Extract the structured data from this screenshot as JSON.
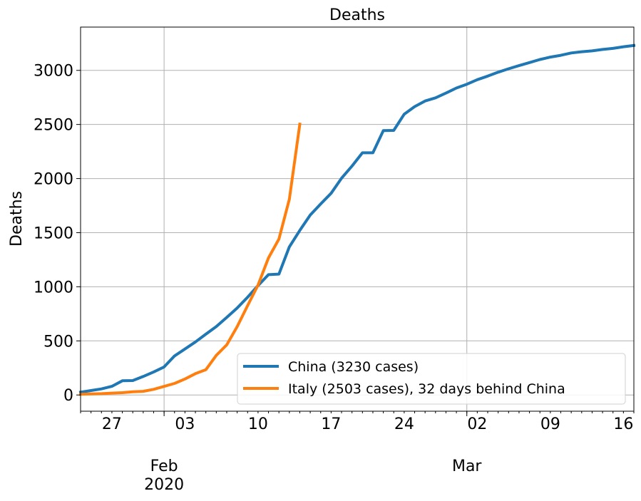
{
  "chart_data": {
    "type": "line",
    "title": "Deaths",
    "xlabel": "",
    "ylabel": "Deaths",
    "x_start": "2020-01-24",
    "x_end": "2020-03-17",
    "ylim": [
      -150,
      3400
    ],
    "yticks": [
      0,
      500,
      1000,
      1500,
      2000,
      2500,
      3000
    ],
    "xtick_labels": [
      {
        "date": "2020-01-27",
        "label": "27"
      },
      {
        "date": "2020-02-03",
        "label": "03"
      },
      {
        "date": "2020-02-10",
        "label": "10"
      },
      {
        "date": "2020-02-17",
        "label": "17"
      },
      {
        "date": "2020-02-24",
        "label": "24"
      },
      {
        "date": "2020-03-02",
        "label": "02"
      },
      {
        "date": "2020-03-09",
        "label": "09"
      },
      {
        "date": "2020-03-16",
        "label": "16"
      }
    ],
    "month_labels": [
      {
        "date": "2020-02-01",
        "label": "Feb",
        "year": "2020"
      },
      {
        "date": "2020-03-01",
        "label": "Mar",
        "year": ""
      }
    ],
    "grid": true,
    "legend_position": "lower-right",
    "series": [
      {
        "name": "China (3230 cases)",
        "color": "#1f77b4",
        "x": [
          "2020-01-24",
          "2020-01-25",
          "2020-01-26",
          "2020-01-27",
          "2020-01-28",
          "2020-01-29",
          "2020-01-30",
          "2020-01-31",
          "2020-02-01",
          "2020-02-02",
          "2020-02-03",
          "2020-02-04",
          "2020-02-05",
          "2020-02-06",
          "2020-02-07",
          "2020-02-08",
          "2020-02-09",
          "2020-02-10",
          "2020-02-11",
          "2020-02-12",
          "2020-02-13",
          "2020-02-14",
          "2020-02-15",
          "2020-02-16",
          "2020-02-17",
          "2020-02-18",
          "2020-02-19",
          "2020-02-20",
          "2020-02-21",
          "2020-02-22",
          "2020-02-23",
          "2020-02-24",
          "2020-02-25",
          "2020-02-26",
          "2020-02-27",
          "2020-02-28",
          "2020-02-29",
          "2020-03-01",
          "2020-03-02",
          "2020-03-03",
          "2020-03-04",
          "2020-03-05",
          "2020-03-06",
          "2020-03-07",
          "2020-03-08",
          "2020-03-09",
          "2020-03-10",
          "2020-03-11",
          "2020-03-12",
          "2020-03-13",
          "2020-03-14",
          "2020-03-15",
          "2020-03-16",
          "2020-03-17"
        ],
        "values": [
          26,
          41,
          56,
          80,
          131,
          133,
          171,
          213,
          259,
          361,
          425,
          490,
          562,
          632,
          717,
          803,
          904,
          1011,
          1112,
          1117,
          1369,
          1521,
          1663,
          1766,
          1864,
          2003,
          2116,
          2238,
          2238,
          2443,
          2445,
          2595,
          2665,
          2717,
          2746,
          2790,
          2837,
          2872,
          2914,
          2947,
          2983,
          3015,
          3044,
          3072,
          3100,
          3123,
          3139,
          3161,
          3172,
          3180,
          3193,
          3203,
          3218,
          3230
        ]
      },
      {
        "name": "Italy (2503 cases), 32 days behind China",
        "color": "#ff7f0e",
        "x": [
          "2020-01-24",
          "2020-01-25",
          "2020-01-26",
          "2020-01-27",
          "2020-01-28",
          "2020-01-29",
          "2020-01-30",
          "2020-01-31",
          "2020-02-01",
          "2020-02-02",
          "2020-02-03",
          "2020-02-04",
          "2020-02-05",
          "2020-02-06",
          "2020-02-07",
          "2020-02-08",
          "2020-02-09",
          "2020-02-10",
          "2020-02-11",
          "2020-02-12",
          "2020-02-13",
          "2020-02-14"
        ],
        "values": [
          7,
          10,
          12,
          17,
          21,
          29,
          34,
          52,
          79,
          107,
          148,
          197,
          233,
          366,
          463,
          631,
          827,
          1016,
          1266,
          1441,
          1809,
          2503
        ]
      }
    ]
  }
}
